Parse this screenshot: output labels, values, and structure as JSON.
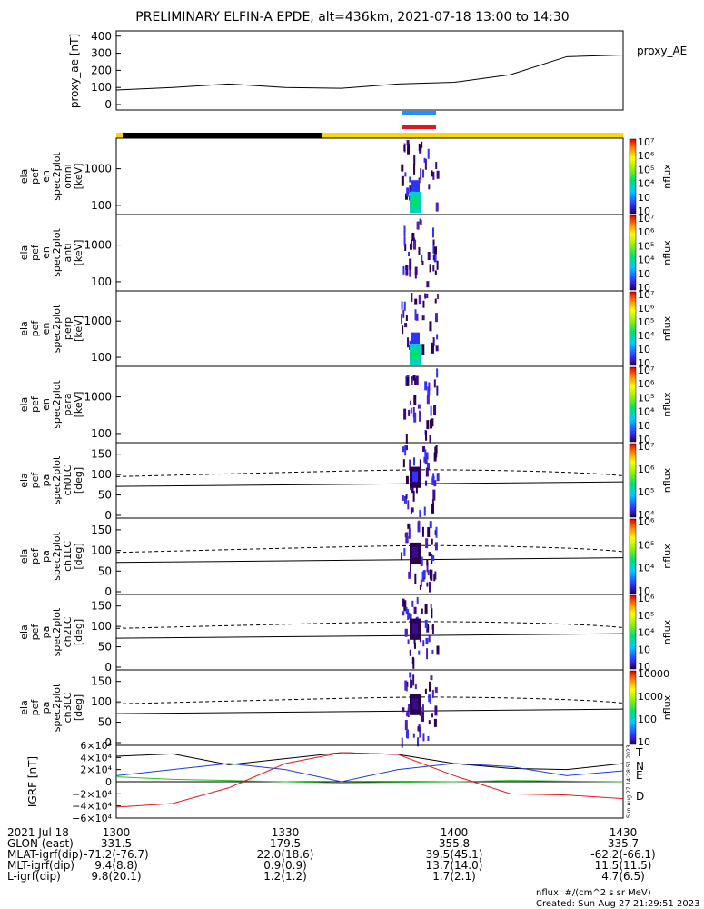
{
  "title": "PRELIMINARY ELFIN-A EPDE, alt=436km, 2021-07-18 13:00 to 14:30",
  "colors": {
    "ae_line": "#000000",
    "bar_blue": "#1e90ff",
    "bar_red": "#e8141e",
    "ephem_black": "#000000",
    "ephem_yellow": "#ffd700",
    "igrf_T": "#000000",
    "igrf_N": "#1a3fd8",
    "igrf_E": "#22c51e",
    "igrf_D": "#e41a1a"
  },
  "chart_data": [
    {
      "type": "line",
      "panel": "proxy_ae",
      "ylabel": "proxy_ae [nT]",
      "series_label": "proxy_AE",
      "ylim": [
        0,
        420
      ],
      "yticks": [
        "400",
        "300",
        "200",
        "100",
        "0"
      ],
      "x_minutes": [
        0,
        10,
        20,
        30,
        40,
        50,
        60,
        70,
        80,
        90
      ],
      "values": [
        85,
        100,
        120,
        100,
        95,
        120,
        130,
        175,
        280,
        290
      ]
    },
    {
      "type": "heatmap",
      "panel": "omni",
      "ylabel": [
        "ela",
        "pef",
        "en",
        "spec2plot",
        "omni",
        "[keV]"
      ],
      "yticks": [
        "1000",
        "100"
      ],
      "colorbar_label": "nflux",
      "colorbar_ticks": [
        "10⁷",
        "10⁶",
        "10⁵",
        "10⁴",
        "10⁳",
        "10⁲"
      ]
    },
    {
      "type": "heatmap",
      "panel": "anti",
      "ylabel": [
        "ela",
        "pef",
        "en",
        "spec2plot",
        "anti",
        "[keV]"
      ],
      "yticks": [
        "1000",
        "100"
      ],
      "colorbar_label": "nflux",
      "colorbar_ticks": [
        "10⁷",
        "10⁶",
        "10⁵",
        "10⁴",
        "10⁳",
        "10⁲"
      ]
    },
    {
      "type": "heatmap",
      "panel": "perp",
      "ylabel": [
        "ela",
        "pef",
        "en",
        "spec2plot",
        "perp",
        "[keV]"
      ],
      "yticks": [
        "1000",
        "100"
      ],
      "colorbar_label": "nflux",
      "colorbar_ticks": [
        "10⁷",
        "10⁶",
        "10⁵",
        "10⁴",
        "10⁳",
        "10⁲"
      ]
    },
    {
      "type": "heatmap",
      "panel": "para",
      "ylabel": [
        "ela",
        "pef",
        "en",
        "spec2plot",
        "para",
        "[keV]"
      ],
      "yticks": [
        "1000",
        "100"
      ],
      "colorbar_label": "nflux",
      "colorbar_ticks": [
        "10⁷",
        "10⁶",
        "10⁵",
        "10⁴",
        "10⁳",
        "10⁲"
      ]
    },
    {
      "type": "heatmap",
      "panel": "ch0LC",
      "ylabel": [
        "ela",
        "pef",
        "pa",
        "spec2plot",
        "ch0LC",
        "[deg]"
      ],
      "yticks": [
        "150",
        "100",
        "50",
        "0"
      ],
      "colorbar_label": "nflux",
      "colorbar_ticks": [
        "10⁷",
        "10⁶",
        "10⁵",
        "10⁴"
      ]
    },
    {
      "type": "heatmap",
      "panel": "ch1LC",
      "ylabel": [
        "ela",
        "pef",
        "pa",
        "spec2plot",
        "ch1LC",
        "[deg]"
      ],
      "yticks": [
        "150",
        "100",
        "50",
        "0"
      ],
      "colorbar_label": "nflux",
      "colorbar_ticks": [
        "10⁶",
        "10⁵",
        "10⁴",
        "10⁳"
      ]
    },
    {
      "type": "heatmap",
      "panel": "ch2LC",
      "ylabel": [
        "ela",
        "pef",
        "pa",
        "spec2plot",
        "ch2LC",
        "[deg]"
      ],
      "yticks": [
        "150",
        "100",
        "50",
        "0"
      ],
      "colorbar_label": "nflux",
      "colorbar_ticks": [
        "10⁶",
        "10⁵",
        "10⁴",
        "10⁳",
        "10⁲"
      ]
    },
    {
      "type": "heatmap",
      "panel": "ch3LC",
      "ylabel": [
        "ela",
        "pef",
        "pa",
        "spec2plot",
        "ch3LC",
        "[deg]"
      ],
      "yticks": [
        "150",
        "100",
        "50",
        "0"
      ],
      "colorbar_label": "nflux",
      "colorbar_ticks": [
        "10000",
        "1000",
        "100",
        "10"
      ]
    },
    {
      "type": "line",
      "panel": "igrf",
      "ylabel": "IGRF [nT]",
      "ylim": [
        -60000,
        60000
      ],
      "yticks": [
        "6×10⁴",
        "4×10⁴",
        "2×10⁴",
        "0",
        "−2×10⁴",
        "−4×10⁴",
        "−6×10⁴"
      ],
      "legend": [
        "T",
        "N",
        "E",
        "D"
      ],
      "side_stamp": "Sun Aug 27 14:28:51 2023",
      "x_minutes": [
        0,
        10,
        20,
        30,
        40,
        50,
        60,
        70,
        80,
        90
      ],
      "series": [
        {
          "name": "T",
          "values": [
            42000,
            46000,
            28000,
            38000,
            48000,
            45000,
            30000,
            22000,
            20000,
            30000
          ]
        },
        {
          "name": "N",
          "values": [
            10000,
            20000,
            30000,
            20000,
            0,
            20000,
            30000,
            25000,
            10000,
            18000
          ]
        },
        {
          "name": "E",
          "values": [
            8000,
            4000,
            2000,
            0,
            -2000,
            -1000,
            0,
            2000,
            1000,
            0
          ]
        },
        {
          "name": "D",
          "values": [
            -42000,
            -36000,
            -10000,
            30000,
            48000,
            45000,
            10000,
            -20000,
            -22000,
            -28000
          ]
        }
      ]
    }
  ],
  "x_axis": {
    "date": "2021 Jul 18",
    "ticks": [
      "1300",
      "1330",
      "1400",
      "1430"
    ],
    "rows": [
      {
        "label": "GLON (east)",
        "values": [
          "331.5",
          "179.5",
          "355.8",
          "335.7"
        ]
      },
      {
        "label": "MLAT-igrf(dip)",
        "values": [
          "-71.2(-76.7)",
          "22.0(18.6)",
          "39.5(45.1)",
          "-62.2(-66.1)"
        ]
      },
      {
        "label": "MLT-igrf(dip)",
        "values": [
          "9.4(8.8)",
          "0.9(0.9)",
          "13.7(14.0)",
          "11.5(11.5)"
        ]
      },
      {
        "label": "L-igrf(dip)",
        "values": [
          "9.8(20.1)",
          "1.2(1.2)",
          "1.7(2.1)",
          "4.7(6.5)"
        ]
      }
    ]
  },
  "footer": {
    "units": "nflux: #/(cm^2 s sr MeV)",
    "created": "Created: Sun Aug 27 21:29:51 2023"
  }
}
